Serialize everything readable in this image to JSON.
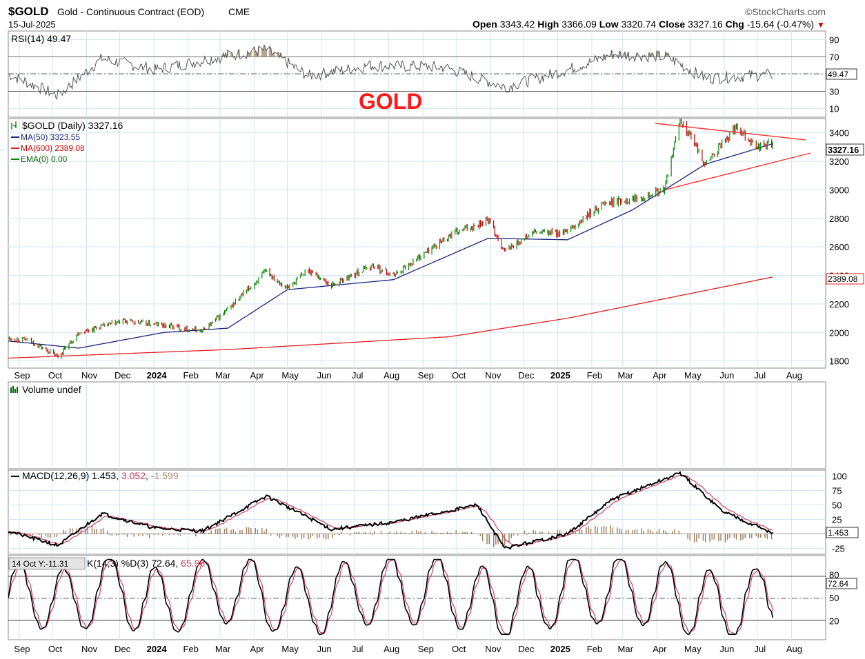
{
  "header": {
    "symbol": "$GOLD",
    "description": "Gold - Continuous Contract (EOD)",
    "exchange": "CME",
    "brand": "©StockCharts.com",
    "date": "15-Jul-2025",
    "open_label": "Open",
    "open": "3343.42",
    "high_label": "High",
    "high": "3366.09",
    "low_label": "Low",
    "low": "3320.74",
    "close_label": "Close",
    "close": "3327.16",
    "chg_label": "Chg",
    "chg": "-15.64 (-0.47%)",
    "chg_arrow": "▼"
  },
  "annotation": "GOLD",
  "x_axis": {
    "months": [
      "Sep",
      "Oct",
      "Nov",
      "Dec",
      "2024",
      "Feb",
      "Mar",
      "Apr",
      "May",
      "Jun",
      "Jul",
      "Aug",
      "Sep",
      "Oct",
      "Nov",
      "Dec",
      "2025",
      "Feb",
      "Mar",
      "Apr",
      "May",
      "Jun",
      "Jul",
      "Aug"
    ],
    "year_labels": [
      "2024",
      "2025"
    ]
  },
  "colors": {
    "price_up": "#008800",
    "price_down": "#cc0000",
    "ma50": "#1a237e",
    "ma600": "#e02020",
    "trendline": "#ff3333",
    "grid": "#cfe6f2",
    "histogram": "#a08060",
    "signal": "#d04060"
  },
  "rsi_panel": {
    "label": "RSI(14) 49.47",
    "current": "49.47",
    "ticks": [
      "90",
      "70",
      "50",
      "30",
      "10"
    ]
  },
  "price_panel": {
    "label": "$GOLD (Daily) 3327.16",
    "ma50_label": "MA(50) 3323.55",
    "ma600_label": "MA(600) 2389.08",
    "ema_label": "EMA(0) 0.00",
    "current": "3327.16",
    "ma600_current": "2389.08",
    "ticks": [
      "3400",
      "3200",
      "3000",
      "2800",
      "2600",
      "2400",
      "2200",
      "2000",
      "1800"
    ]
  },
  "volume_panel": {
    "label": "Volume undef"
  },
  "macd_panel": {
    "label_main": "MACD(12,26,9) 1.453, ",
    "label_signal": "3.052",
    "label_sep": ", ",
    "label_hist": "-1.599",
    "current": "1.453",
    "ticks": [
      "100",
      "75",
      "50",
      "25",
      "-25"
    ]
  },
  "stoch_panel": {
    "tooltip": "14 Oct Y:-11.31",
    "label_main": "K(14,3) %D(3) 72.64, ",
    "label_d": "65.96",
    "current": "72.64",
    "ticks": [
      "80",
      "50",
      "20"
    ]
  },
  "chart_data": [
    {
      "type": "line",
      "name": "RSI(14)",
      "x": [
        "2023-08-22",
        "2023-10-06",
        "2023-11-15",
        "2024-01-02",
        "2024-03-10",
        "2024-04-12",
        "2024-05-20",
        "2024-07-15",
        "2024-09-20",
        "2024-11-15",
        "2025-01-10",
        "2025-02-20",
        "2025-04-10",
        "2025-05-15",
        "2025-07-15"
      ],
      "values": [
        50,
        25,
        68,
        55,
        72,
        78,
        48,
        60,
        58,
        35,
        55,
        73,
        70,
        45,
        49.47
      ],
      "ylim": [
        0,
        100
      ]
    },
    {
      "type": "line",
      "name": "$GOLD (Daily)",
      "x": [
        "2023-08-22",
        "2023-09-10",
        "2023-10-06",
        "2023-10-25",
        "2023-12-04",
        "2024-01-10",
        "2024-02-14",
        "2024-03-08",
        "2024-04-12",
        "2024-05-01",
        "2024-05-20",
        "2024-06-10",
        "2024-07-17",
        "2024-08-05",
        "2024-09-25",
        "2024-10-30",
        "2024-11-14",
        "2024-12-10",
        "2025-01-10",
        "2025-02-10",
        "2025-03-10",
        "2025-04-08",
        "2025-04-22",
        "2025-05-15",
        "2025-06-13",
        "2025-06-30",
        "2025-07-15"
      ],
      "values": [
        1960,
        1945,
        1830,
        2000,
        2080,
        2050,
        2010,
        2160,
        2430,
        2310,
        2440,
        2330,
        2470,
        2400,
        2680,
        2790,
        2570,
        2700,
        2700,
        2900,
        2940,
        3000,
        3500,
        3180,
        3450,
        3300,
        3327.16
      ],
      "ylim": [
        1750,
        3500
      ]
    },
    {
      "type": "line",
      "name": "MA(50)",
      "x": [
        "2023-08-22",
        "2023-10-25",
        "2024-01-10",
        "2024-03-08",
        "2024-05-01",
        "2024-08-05",
        "2024-10-30",
        "2025-01-10",
        "2025-03-10",
        "2025-05-15",
        "2025-07-15"
      ],
      "values": [
        1940,
        1890,
        2000,
        2030,
        2300,
        2370,
        2660,
        2650,
        2860,
        3180,
        3323.55
      ]
    },
    {
      "type": "line",
      "name": "MA(600)",
      "x": [
        "2023-08-22",
        "2024-03-08",
        "2024-09-25",
        "2025-01-10",
        "2025-07-15"
      ],
      "values": [
        1820,
        1880,
        1970,
        2100,
        2389.08
      ]
    },
    {
      "type": "line",
      "name": "MACD(12,26,9)",
      "x": [
        "2023-08-22",
        "2023-10-06",
        "2023-11-15",
        "2024-01-02",
        "2024-02-14",
        "2024-04-12",
        "2024-06-10",
        "2024-08-05",
        "2024-10-20",
        "2024-11-14",
        "2025-01-10",
        "2025-02-20",
        "2025-04-22",
        "2025-05-30",
        "2025-07-15"
      ],
      "values": [
        5,
        -20,
        35,
        10,
        5,
        65,
        8,
        20,
        50,
        -25,
        0,
        60,
        105,
        40,
        1.453
      ],
      "signal": [
        3.052
      ],
      "histogram": [
        -1.599
      ],
      "ylim": [
        -35,
        110
      ]
    },
    {
      "type": "line",
      "name": "K(14,3) %D(3)",
      "x": [
        "2023-08-22",
        "2023-09-10",
        "2023-10-06",
        "2023-11-15",
        "2024-01-02",
        "2024-03-10",
        "2024-05-20",
        "2024-07-15",
        "2024-09-20",
        "2024-11-15",
        "2025-01-10",
        "2025-03-10",
        "2025-05-15",
        "2025-06-30",
        "2025-07-15"
      ],
      "values": [
        10,
        95,
        20,
        95,
        30,
        95,
        20,
        90,
        85,
        5,
        90,
        95,
        15,
        20,
        72.64
      ],
      "d_values": [
        65.96
      ],
      "ylim": [
        0,
        100
      ]
    }
  ]
}
